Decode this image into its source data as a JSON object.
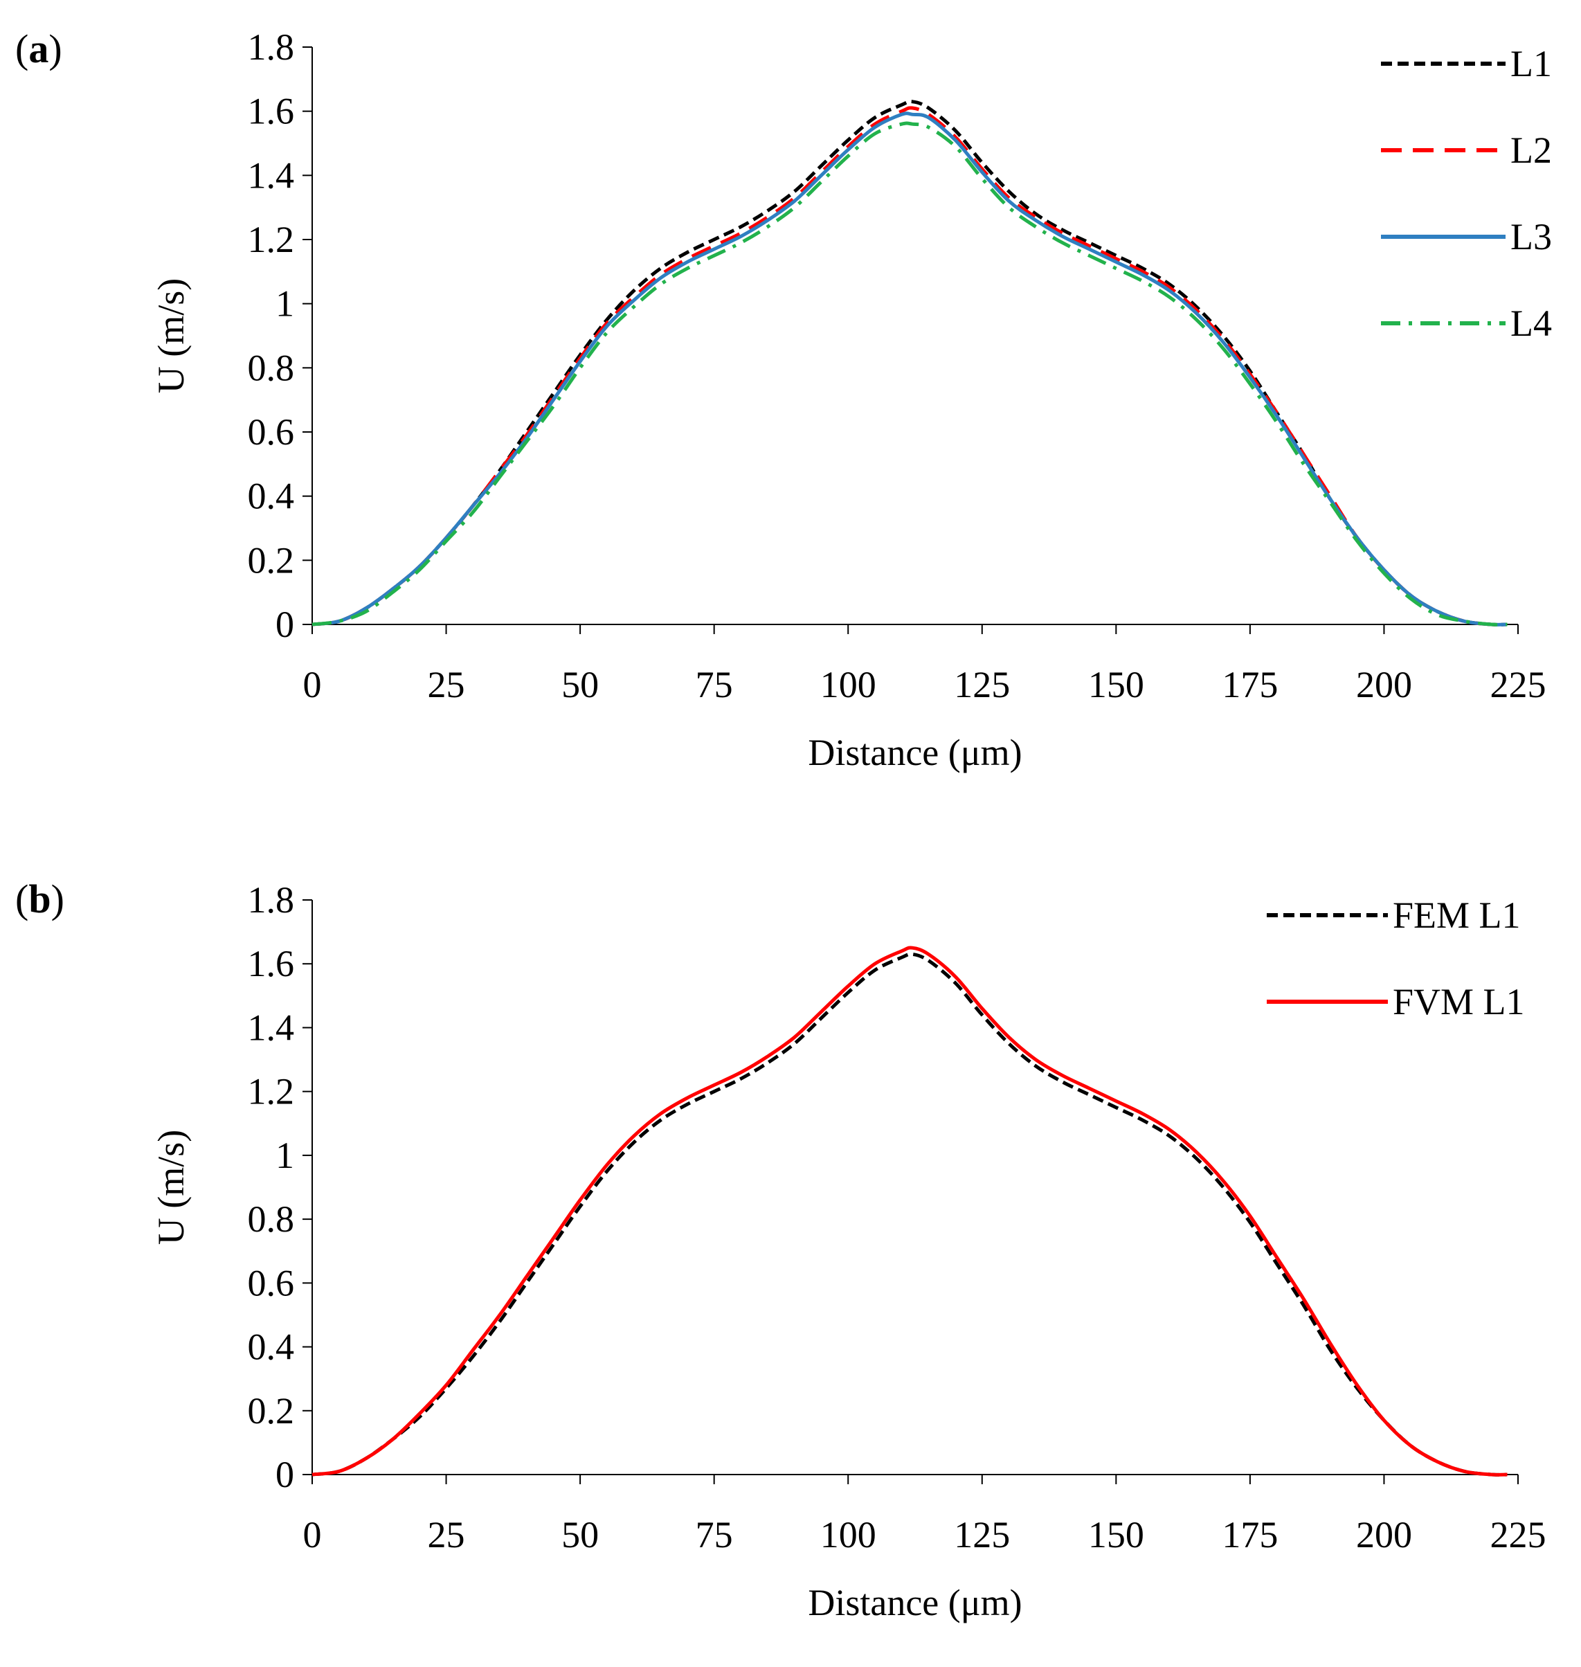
{
  "chart_data": [
    {
      "panel_label": "a",
      "type": "line",
      "xlabel": "Distance (μm)",
      "ylabel": "U (m/s)",
      "xlim": [
        0,
        225
      ],
      "ylim": [
        0,
        1.8
      ],
      "xticks": [
        0,
        25,
        50,
        75,
        100,
        125,
        150,
        175,
        200,
        225
      ],
      "yticks": [
        0,
        0.2,
        0.4,
        0.6,
        0.8,
        1,
        1.2,
        1.4,
        1.6,
        1.8
      ],
      "ytick_labels": [
        "0",
        "0.2",
        "0.4",
        "0.6",
        "0.8",
        "1",
        "1.2",
        "1.4",
        "1.6",
        "1.8"
      ],
      "legend_position": "top-right",
      "x": [
        0,
        5,
        10,
        15,
        20,
        25,
        30,
        35,
        40,
        45,
        50,
        55,
        60,
        65,
        70,
        75,
        80,
        85,
        90,
        95,
        100,
        105,
        110,
        112,
        115,
        120,
        125,
        130,
        135,
        140,
        145,
        150,
        155,
        160,
        165,
        170,
        175,
        180,
        185,
        190,
        195,
        200,
        205,
        210,
        215,
        220,
        223
      ],
      "series": [
        {
          "name": "L1",
          "color": "#000000",
          "dash": "short-dash",
          "values": [
            0,
            0.01,
            0.05,
            0.11,
            0.18,
            0.27,
            0.37,
            0.48,
            0.6,
            0.72,
            0.84,
            0.95,
            1.04,
            1.11,
            1.16,
            1.2,
            1.24,
            1.29,
            1.35,
            1.43,
            1.51,
            1.58,
            1.62,
            1.63,
            1.61,
            1.54,
            1.44,
            1.35,
            1.28,
            1.23,
            1.19,
            1.15,
            1.11,
            1.06,
            0.99,
            0.9,
            0.79,
            0.66,
            0.53,
            0.39,
            0.27,
            0.17,
            0.09,
            0.04,
            0.01,
            0,
            0
          ]
        },
        {
          "name": "L2",
          "color": "#ff0000",
          "dash": "long-dash",
          "values": [
            0,
            0.01,
            0.05,
            0.11,
            0.18,
            0.27,
            0.37,
            0.48,
            0.59,
            0.71,
            0.83,
            0.94,
            1.02,
            1.09,
            1.14,
            1.18,
            1.22,
            1.27,
            1.33,
            1.41,
            1.49,
            1.56,
            1.6,
            1.61,
            1.59,
            1.52,
            1.42,
            1.33,
            1.27,
            1.22,
            1.18,
            1.14,
            1.1,
            1.05,
            0.98,
            0.89,
            0.78,
            0.66,
            0.53,
            0.4,
            0.27,
            0.17,
            0.09,
            0.04,
            0.01,
            0,
            0
          ]
        },
        {
          "name": "L3",
          "color": "#2f7fc1",
          "dash": "solid",
          "values": [
            0,
            0.01,
            0.05,
            0.11,
            0.18,
            0.27,
            0.37,
            0.47,
            0.58,
            0.7,
            0.82,
            0.93,
            1.01,
            1.08,
            1.13,
            1.17,
            1.21,
            1.26,
            1.32,
            1.4,
            1.48,
            1.55,
            1.59,
            1.59,
            1.58,
            1.51,
            1.41,
            1.32,
            1.26,
            1.21,
            1.17,
            1.13,
            1.09,
            1.04,
            0.97,
            0.88,
            0.77,
            0.65,
            0.52,
            0.39,
            0.27,
            0.17,
            0.09,
            0.04,
            0.01,
            0,
            0
          ]
        },
        {
          "name": "L4",
          "color": "#22b24c",
          "dash": "dash-dot",
          "values": [
            0,
            0.01,
            0.04,
            0.1,
            0.17,
            0.26,
            0.35,
            0.46,
            0.57,
            0.68,
            0.8,
            0.91,
            0.99,
            1.06,
            1.11,
            1.15,
            1.19,
            1.24,
            1.3,
            1.38,
            1.46,
            1.53,
            1.56,
            1.56,
            1.55,
            1.49,
            1.39,
            1.3,
            1.24,
            1.19,
            1.15,
            1.11,
            1.07,
            1.02,
            0.95,
            0.86,
            0.75,
            0.63,
            0.5,
            0.38,
            0.26,
            0.16,
            0.08,
            0.03,
            0.01,
            0,
            0
          ]
        }
      ]
    },
    {
      "panel_label": "b",
      "type": "line",
      "xlabel": "Distance (μm)",
      "ylabel": "U (m/s)",
      "xlim": [
        0,
        225
      ],
      "ylim": [
        0,
        1.8
      ],
      "xticks": [
        0,
        25,
        50,
        75,
        100,
        125,
        150,
        175,
        200,
        225
      ],
      "yticks": [
        0,
        0.2,
        0.4,
        0.6,
        0.8,
        1,
        1.2,
        1.4,
        1.6,
        1.8
      ],
      "ytick_labels": [
        "0",
        "0.2",
        "0.4",
        "0.6",
        "0.8",
        "1",
        "1.2",
        "1.4",
        "1.6",
        "1.8"
      ],
      "legend_position": "top-right",
      "x": [
        0,
        5,
        10,
        15,
        20,
        25,
        30,
        35,
        40,
        45,
        50,
        55,
        60,
        65,
        70,
        75,
        80,
        85,
        90,
        95,
        100,
        105,
        110,
        112,
        115,
        120,
        125,
        130,
        135,
        140,
        145,
        150,
        155,
        160,
        165,
        170,
        175,
        180,
        185,
        190,
        195,
        200,
        205,
        210,
        215,
        220,
        223
      ],
      "series": [
        {
          "name": "FEM L1",
          "color": "#000000",
          "dash": "short-dash",
          "values": [
            0,
            0.01,
            0.05,
            0.11,
            0.18,
            0.27,
            0.37,
            0.48,
            0.6,
            0.72,
            0.84,
            0.95,
            1.04,
            1.11,
            1.16,
            1.2,
            1.24,
            1.29,
            1.35,
            1.43,
            1.51,
            1.58,
            1.62,
            1.63,
            1.61,
            1.54,
            1.44,
            1.35,
            1.28,
            1.23,
            1.19,
            1.15,
            1.11,
            1.06,
            0.99,
            0.9,
            0.79,
            0.66,
            0.53,
            0.39,
            0.27,
            0.17,
            0.09,
            0.04,
            0.01,
            0,
            0
          ]
        },
        {
          "name": "FVM L1",
          "color": "#ff0000",
          "dash": "solid",
          "values": [
            0,
            0.01,
            0.05,
            0.11,
            0.19,
            0.28,
            0.39,
            0.5,
            0.62,
            0.74,
            0.86,
            0.97,
            1.06,
            1.13,
            1.18,
            1.22,
            1.26,
            1.31,
            1.37,
            1.45,
            1.53,
            1.6,
            1.64,
            1.65,
            1.63,
            1.56,
            1.46,
            1.37,
            1.3,
            1.25,
            1.21,
            1.17,
            1.13,
            1.08,
            1.01,
            0.92,
            0.81,
            0.68,
            0.55,
            0.41,
            0.28,
            0.17,
            0.09,
            0.04,
            0.01,
            0,
            0
          ]
        }
      ]
    }
  ]
}
